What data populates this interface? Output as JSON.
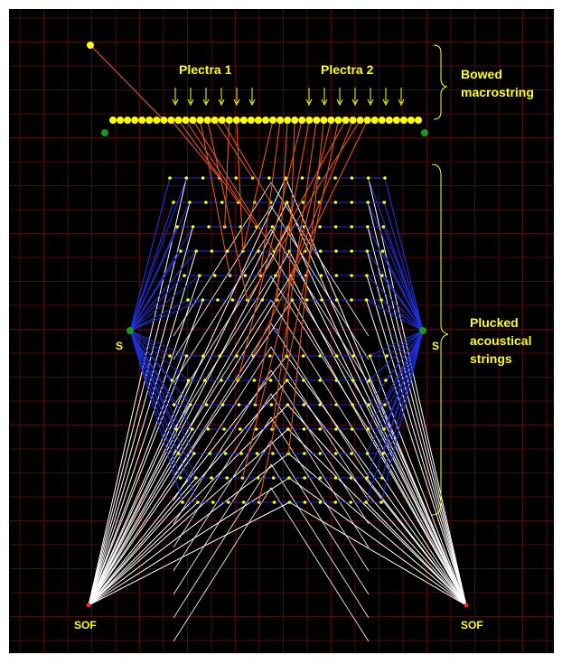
{
  "labels": {
    "plectra_1": "Plectra 1",
    "plectra_2": "Plectra 2",
    "bowed_line1": "Bowed",
    "bowed_line2": "macrostring",
    "plucked_line1": "Plucked",
    "plucked_line2": "acoustical",
    "plucked_line3": "strings",
    "support_left": "S",
    "support_right": "S",
    "sof_left": "SOF",
    "sof_right": "SOF"
  },
  "colors": {
    "background": "#000000",
    "grid": "#4a0c0c",
    "masses": "#ffff00",
    "springs_support": "#1e2fd6",
    "springs_sof": "#ffffff",
    "plectra_links": "#e0561a",
    "fixed_points": "#1a9a1a",
    "sof_points": "#ff2020",
    "labels": "#ffff00"
  },
  "structure": {
    "macrostring_masses": 43,
    "plucked_strings_upper": 6,
    "plucked_strings_lower": 7,
    "masses_per_plucked_string": 14,
    "plectra_1_arrows": 6,
    "plectra_2_arrows": 7
  }
}
